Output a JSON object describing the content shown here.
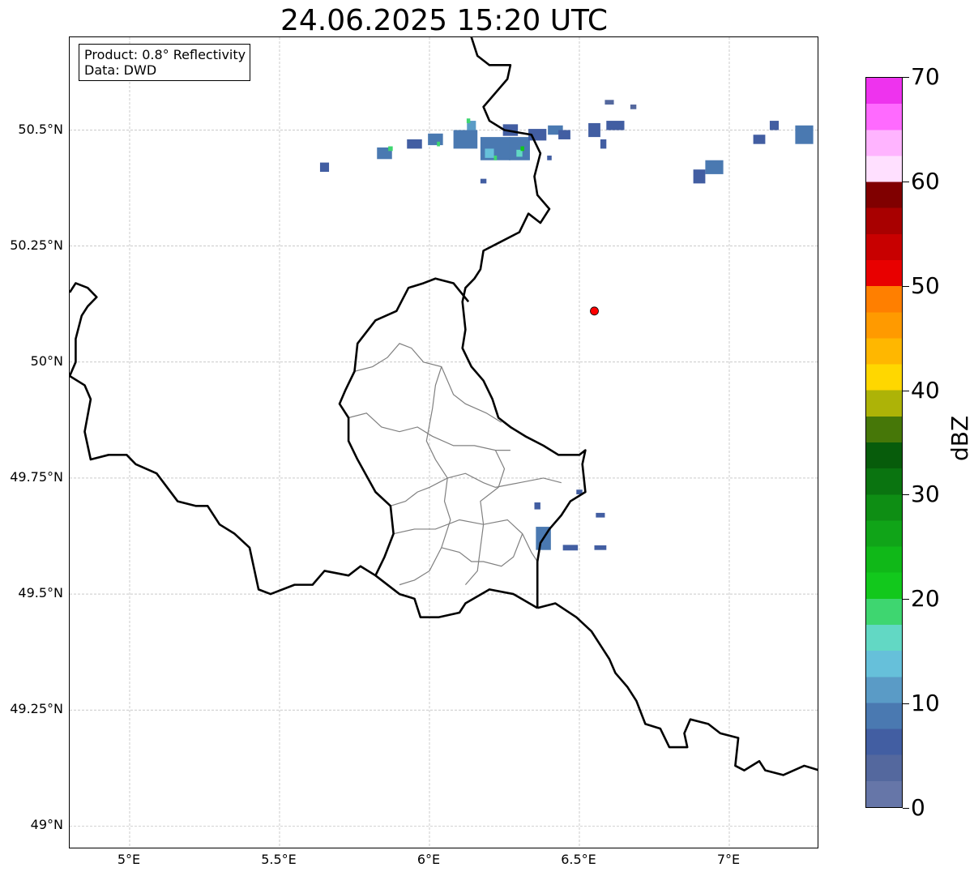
{
  "title": "24.06.2025 15:20 UTC",
  "info": {
    "product": "Product: 0.8° Reflectivity",
    "source": "Data: DWD"
  },
  "map": {
    "extent": {
      "lon_min": 4.8,
      "lon_max": 7.3,
      "lat_min": 48.95,
      "lat_max": 50.7
    },
    "lat_ticks": [
      {
        "value": 50.5,
        "label": "50.5°N"
      },
      {
        "value": 50.25,
        "label": "50.25°N"
      },
      {
        "value": 50.0,
        "label": "50°N"
      },
      {
        "value": 49.75,
        "label": "49.75°N"
      },
      {
        "value": 49.5,
        "label": "49.5°N"
      },
      {
        "value": 49.25,
        "label": "49.25°N"
      },
      {
        "value": 49.0,
        "label": "49°N"
      }
    ],
    "lon_ticks": [
      {
        "value": 5.0,
        "label": "5°E"
      },
      {
        "value": 5.5,
        "label": "5.5°E"
      },
      {
        "value": 6.0,
        "label": "6°E"
      },
      {
        "value": 6.5,
        "label": "6.5°E"
      },
      {
        "value": 7.0,
        "label": "7°E"
      }
    ],
    "marker": {
      "lon": 6.55,
      "lat": 50.11,
      "color": "#ff0000"
    },
    "country_borders": [
      [
        [
          6.13,
          50.72
        ],
        [
          6.16,
          50.66
        ],
        [
          6.2,
          50.64
        ],
        [
          6.27,
          50.64
        ],
        [
          6.26,
          50.61
        ],
        [
          6.18,
          50.55
        ],
        [
          6.2,
          50.52
        ],
        [
          6.25,
          50.5
        ],
        [
          6.34,
          50.49
        ],
        [
          6.37,
          50.45
        ],
        [
          6.35,
          50.4
        ],
        [
          6.36,
          50.36
        ],
        [
          6.4,
          50.33
        ],
        [
          6.37,
          50.3
        ],
        [
          6.33,
          50.32
        ],
        [
          6.3,
          50.28
        ],
        [
          6.24,
          50.26
        ],
        [
          6.18,
          50.24
        ],
        [
          6.17,
          50.2
        ],
        [
          6.15,
          50.18
        ],
        [
          6.12,
          50.16
        ],
        [
          6.11,
          50.13
        ],
        [
          6.12,
          50.07
        ],
        [
          6.11,
          50.03
        ],
        [
          6.14,
          49.99
        ],
        [
          6.18,
          49.96
        ],
        [
          6.21,
          49.92
        ],
        [
          6.23,
          49.88
        ],
        [
          6.27,
          49.86
        ],
        [
          6.32,
          49.84
        ],
        [
          6.38,
          49.82
        ],
        [
          6.43,
          49.8
        ],
        [
          6.5,
          49.8
        ],
        [
          6.52,
          49.81
        ],
        [
          6.51,
          49.78
        ],
        [
          6.52,
          49.72
        ],
        [
          6.47,
          49.7
        ],
        [
          6.44,
          49.67
        ],
        [
          6.4,
          49.64
        ],
        [
          6.37,
          49.61
        ],
        [
          6.36,
          49.57
        ],
        [
          6.36,
          49.53
        ],
        [
          6.36,
          49.47
        ]
      ],
      [
        [
          6.36,
          49.47
        ],
        [
          6.42,
          49.48
        ],
        [
          6.49,
          49.45
        ],
        [
          6.54,
          49.42
        ],
        [
          6.58,
          49.38
        ],
        [
          6.6,
          49.36
        ],
        [
          6.62,
          49.33
        ],
        [
          6.66,
          49.3
        ],
        [
          6.69,
          49.27
        ],
        [
          6.72,
          49.22
        ],
        [
          6.77,
          49.21
        ],
        [
          6.8,
          49.17
        ],
        [
          6.86,
          49.17
        ],
        [
          6.85,
          49.2
        ],
        [
          6.87,
          49.23
        ],
        [
          6.93,
          49.22
        ],
        [
          6.97,
          49.2
        ],
        [
          7.03,
          49.19
        ],
        [
          7.02,
          49.13
        ],
        [
          7.05,
          49.12
        ],
        [
          7.1,
          49.14
        ],
        [
          7.12,
          49.12
        ],
        [
          7.18,
          49.11
        ],
        [
          7.25,
          49.13
        ],
        [
          7.3,
          49.12
        ]
      ],
      [
        [
          6.36,
          49.47
        ],
        [
          6.28,
          49.5
        ],
        [
          6.2,
          49.51
        ],
        [
          6.12,
          49.48
        ],
        [
          6.1,
          49.46
        ],
        [
          6.03,
          49.45
        ],
        [
          5.97,
          49.45
        ],
        [
          5.95,
          49.49
        ],
        [
          5.9,
          49.5
        ],
        [
          5.82,
          49.54
        ],
        [
          5.77,
          49.56
        ],
        [
          5.73,
          49.54
        ],
        [
          5.65,
          49.55
        ],
        [
          5.61,
          49.52
        ],
        [
          5.55,
          49.52
        ],
        [
          5.47,
          49.5
        ],
        [
          5.43,
          49.51
        ],
        [
          5.4,
          49.6
        ],
        [
          5.35,
          49.63
        ],
        [
          5.3,
          49.65
        ],
        [
          5.26,
          49.69
        ],
        [
          5.22,
          49.69
        ],
        [
          5.16,
          49.7
        ],
        [
          5.09,
          49.76
        ],
        [
          5.02,
          49.78
        ],
        [
          4.99,
          49.8
        ],
        [
          4.93,
          49.8
        ],
        [
          4.87,
          49.79
        ],
        [
          4.85,
          49.85
        ],
        [
          4.87,
          49.92
        ],
        [
          4.85,
          49.95
        ],
        [
          4.8,
          49.97
        ]
      ],
      [
        [
          6.13,
          50.13
        ],
        [
          6.08,
          50.17
        ],
        [
          6.02,
          50.18
        ],
        [
          5.98,
          50.17
        ],
        [
          5.93,
          50.16
        ],
        [
          5.89,
          50.11
        ],
        [
          5.82,
          50.09
        ],
        [
          5.76,
          50.04
        ],
        [
          5.75,
          49.98
        ],
        [
          5.72,
          49.94
        ],
        [
          5.7,
          49.91
        ],
        [
          5.73,
          49.88
        ],
        [
          5.73,
          49.83
        ],
        [
          5.76,
          49.79
        ],
        [
          5.82,
          49.72
        ],
        [
          5.87,
          49.69
        ],
        [
          5.88,
          49.63
        ],
        [
          5.85,
          49.58
        ],
        [
          5.82,
          49.54
        ]
      ],
      [
        [
          4.8,
          50.15
        ],
        [
          4.82,
          50.17
        ],
        [
          4.86,
          50.16
        ],
        [
          4.89,
          50.14
        ],
        [
          4.86,
          50.12
        ],
        [
          4.84,
          50.1
        ],
        [
          4.82,
          50.05
        ],
        [
          4.82,
          50.0
        ],
        [
          4.8,
          49.97
        ]
      ]
    ],
    "canton_borders": [
      [
        [
          5.75,
          49.98
        ],
        [
          5.81,
          49.99
        ],
        [
          5.86,
          50.01
        ],
        [
          5.9,
          50.04
        ],
        [
          5.94,
          50.03
        ],
        [
          5.98,
          50.0
        ],
        [
          6.04,
          49.99
        ],
        [
          6.08,
          49.93
        ],
        [
          6.12,
          49.91
        ],
        [
          6.19,
          49.89
        ],
        [
          6.24,
          49.87
        ]
      ],
      [
        [
          6.04,
          49.99
        ],
        [
          6.02,
          49.95
        ],
        [
          6.01,
          49.9
        ],
        [
          5.99,
          49.83
        ],
        [
          6.02,
          49.79
        ],
        [
          6.06,
          49.75
        ]
      ],
      [
        [
          5.73,
          49.88
        ],
        [
          5.79,
          49.89
        ],
        [
          5.84,
          49.86
        ],
        [
          5.9,
          49.85
        ],
        [
          5.96,
          49.86
        ],
        [
          6.01,
          49.84
        ],
        [
          6.08,
          49.82
        ],
        [
          6.15,
          49.82
        ],
        [
          6.22,
          49.81
        ],
        [
          6.27,
          49.81
        ]
      ],
      [
        [
          5.87,
          49.69
        ],
        [
          5.92,
          49.7
        ],
        [
          5.96,
          49.72
        ],
        [
          6.0,
          49.73
        ],
        [
          6.06,
          49.75
        ],
        [
          6.12,
          49.76
        ],
        [
          6.18,
          49.74
        ],
        [
          6.22,
          49.73
        ],
        [
          6.3,
          49.74
        ],
        [
          6.38,
          49.75
        ],
        [
          6.44,
          49.74
        ]
      ],
      [
        [
          5.88,
          49.63
        ],
        [
          5.95,
          49.64
        ],
        [
          6.02,
          49.64
        ],
        [
          6.1,
          49.66
        ],
        [
          6.18,
          49.65
        ],
        [
          6.26,
          49.66
        ],
        [
          6.31,
          49.63
        ],
        [
          6.34,
          49.59
        ],
        [
          6.36,
          49.57
        ]
      ],
      [
        [
          6.06,
          49.75
        ],
        [
          6.05,
          49.7
        ],
        [
          6.07,
          49.66
        ],
        [
          6.04,
          49.6
        ],
        [
          6.0,
          49.55
        ],
        [
          5.95,
          49.53
        ],
        [
          5.9,
          49.52
        ]
      ],
      [
        [
          6.22,
          49.81
        ],
        [
          6.25,
          49.77
        ],
        [
          6.23,
          49.73
        ],
        [
          6.17,
          49.7
        ],
        [
          6.18,
          49.65
        ],
        [
          6.17,
          49.6
        ],
        [
          6.16,
          49.55
        ],
        [
          6.12,
          49.52
        ]
      ],
      [
        [
          6.04,
          49.6
        ],
        [
          6.1,
          49.59
        ],
        [
          6.14,
          49.57
        ],
        [
          6.18,
          49.57
        ],
        [
          6.24,
          49.56
        ],
        [
          6.28,
          49.58
        ],
        [
          6.31,
          49.63
        ]
      ]
    ],
    "reflectivity_cells": [
      {
        "lon": 5.65,
        "lat": 50.42,
        "w": 0.03,
        "h": 0.02,
        "dbz": 6
      },
      {
        "lon": 5.85,
        "lat": 50.45,
        "w": 0.05,
        "h": 0.025,
        "dbz": 8
      },
      {
        "lon": 5.87,
        "lat": 50.46,
        "w": 0.015,
        "h": 0.01,
        "dbz": 18
      },
      {
        "lon": 5.95,
        "lat": 50.47,
        "w": 0.05,
        "h": 0.02,
        "dbz": 6
      },
      {
        "lon": 6.02,
        "lat": 50.48,
        "w": 0.05,
        "h": 0.025,
        "dbz": 8
      },
      {
        "lon": 6.03,
        "lat": 50.47,
        "w": 0.01,
        "h": 0.01,
        "dbz": 18
      },
      {
        "lon": 6.12,
        "lat": 50.48,
        "w": 0.08,
        "h": 0.04,
        "dbz": 8
      },
      {
        "lon": 6.14,
        "lat": 50.51,
        "w": 0.03,
        "h": 0.02,
        "dbz": 12
      },
      {
        "lon": 6.13,
        "lat": 50.52,
        "w": 0.012,
        "h": 0.01,
        "dbz": 18
      },
      {
        "lon": 6.22,
        "lat": 50.46,
        "w": 0.1,
        "h": 0.05,
        "dbz": 8
      },
      {
        "lon": 6.2,
        "lat": 50.45,
        "w": 0.03,
        "h": 0.02,
        "dbz": 14
      },
      {
        "lon": 6.22,
        "lat": 50.44,
        "w": 0.01,
        "h": 0.01,
        "dbz": 19
      },
      {
        "lon": 6.3,
        "lat": 50.46,
        "w": 0.07,
        "h": 0.05,
        "dbz": 8
      },
      {
        "lon": 6.3,
        "lat": 50.45,
        "w": 0.02,
        "h": 0.015,
        "dbz": 16
      },
      {
        "lon": 6.31,
        "lat": 50.46,
        "w": 0.012,
        "h": 0.01,
        "dbz": 20
      },
      {
        "lon": 6.27,
        "lat": 50.5,
        "w": 0.05,
        "h": 0.025,
        "dbz": 6
      },
      {
        "lon": 6.36,
        "lat": 50.49,
        "w": 0.06,
        "h": 0.025,
        "dbz": 6
      },
      {
        "lon": 6.42,
        "lat": 50.5,
        "w": 0.05,
        "h": 0.02,
        "dbz": 8
      },
      {
        "lon": 6.45,
        "lat": 50.49,
        "w": 0.04,
        "h": 0.02,
        "dbz": 6
      },
      {
        "lon": 6.55,
        "lat": 50.5,
        "w": 0.04,
        "h": 0.03,
        "dbz": 6
      },
      {
        "lon": 6.62,
        "lat": 50.51,
        "w": 0.06,
        "h": 0.02,
        "dbz": 6
      },
      {
        "lon": 6.58,
        "lat": 50.47,
        "w": 0.02,
        "h": 0.02,
        "dbz": 6
      },
      {
        "lon": 6.4,
        "lat": 50.44,
        "w": 0.015,
        "h": 0.01,
        "dbz": 6
      },
      {
        "lon": 6.18,
        "lat": 50.39,
        "w": 0.02,
        "h": 0.01,
        "dbz": 6
      },
      {
        "lon": 6.6,
        "lat": 50.56,
        "w": 0.03,
        "h": 0.01,
        "dbz": 4
      },
      {
        "lon": 6.68,
        "lat": 50.55,
        "w": 0.02,
        "h": 0.01,
        "dbz": 4
      },
      {
        "lon": 6.9,
        "lat": 50.4,
        "w": 0.04,
        "h": 0.03,
        "dbz": 6
      },
      {
        "lon": 6.95,
        "lat": 50.42,
        "w": 0.06,
        "h": 0.03,
        "dbz": 8
      },
      {
        "lon": 7.1,
        "lat": 50.48,
        "w": 0.04,
        "h": 0.02,
        "dbz": 6
      },
      {
        "lon": 7.15,
        "lat": 50.51,
        "w": 0.03,
        "h": 0.02,
        "dbz": 6
      },
      {
        "lon": 7.25,
        "lat": 50.49,
        "w": 0.06,
        "h": 0.04,
        "dbz": 8
      },
      {
        "lon": 6.36,
        "lat": 49.69,
        "w": 0.02,
        "h": 0.015,
        "dbz": 6
      },
      {
        "lon": 6.38,
        "lat": 49.62,
        "w": 0.05,
        "h": 0.05,
        "dbz": 8
      },
      {
        "lon": 6.47,
        "lat": 49.6,
        "w": 0.05,
        "h": 0.012,
        "dbz": 6
      },
      {
        "lon": 6.57,
        "lat": 49.6,
        "w": 0.04,
        "h": 0.01,
        "dbz": 6
      },
      {
        "lon": 6.57,
        "lat": 49.67,
        "w": 0.03,
        "h": 0.01,
        "dbz": 6
      },
      {
        "lon": 6.5,
        "lat": 49.72,
        "w": 0.02,
        "h": 0.01,
        "dbz": 6
      }
    ]
  },
  "colorbar": {
    "min": 0,
    "max": 70,
    "step": 2.5,
    "label": "dBZ",
    "ticks": [
      {
        "value": 0,
        "label": "0"
      },
      {
        "value": 10,
        "label": "10"
      },
      {
        "value": 20,
        "label": "20"
      },
      {
        "value": 30,
        "label": "30"
      },
      {
        "value": 40,
        "label": "40"
      },
      {
        "value": 50,
        "label": "50"
      },
      {
        "value": 60,
        "label": "60"
      },
      {
        "value": 70,
        "label": "70"
      }
    ],
    "colors": [
      "#6676a8",
      "#54689e",
      "#425ea2",
      "#4a79b1",
      "#5a9bc6",
      "#66c0da",
      "#62d8c4",
      "#3ed670",
      "#12c81c",
      "#10b818",
      "#10a418",
      "#0e8e14",
      "#0a7410",
      "#075c0b",
      "#467708",
      "#adb307",
      "#ffd700",
      "#ffb700",
      "#ff9a00",
      "#ff7f00",
      "#e80000",
      "#c80000",
      "#a80000",
      "#800000",
      "#ffe0ff",
      "#ffb4ff",
      "#ff6aff",
      "#ee33ee"
    ]
  }
}
